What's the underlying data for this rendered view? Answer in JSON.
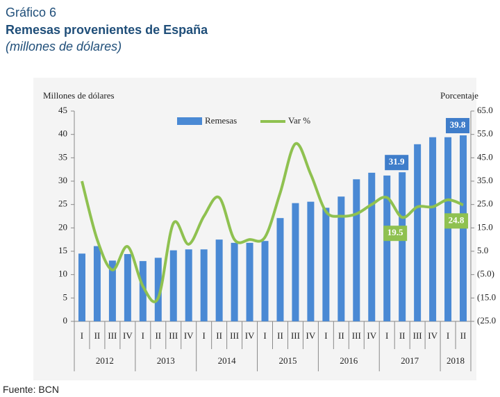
{
  "header": {
    "kicker": "Gráfico 6",
    "title": "Remesas provenientes de España",
    "subtitle": "(millones de dólares)"
  },
  "chart_data": {
    "type": "bar_line",
    "ylabel": "Millones de dólares",
    "y2label": "Porcentaje",
    "categories": [
      "I",
      "II",
      "III",
      "IV",
      "I",
      "II",
      "III",
      "IV",
      "I",
      "II",
      "III",
      "IV",
      "I",
      "II",
      "III",
      "IV",
      "I",
      "II",
      "III",
      "IV",
      "I",
      "II",
      "III",
      "IV",
      "I",
      "II"
    ],
    "groups": [
      {
        "label": "2012",
        "size": 4
      },
      {
        "label": "2013",
        "size": 4
      },
      {
        "label": "2014",
        "size": 4
      },
      {
        "label": "2015",
        "size": 4
      },
      {
        "label": "2016",
        "size": 4
      },
      {
        "label": "2017",
        "size": 4
      },
      {
        "label": "2018",
        "size": 2
      }
    ],
    "series": [
      {
        "name": "Remesas",
        "type": "bar",
        "color": "#4a89d4",
        "values": [
          14.5,
          16.1,
          13.0,
          14.4,
          12.9,
          13.6,
          15.2,
          15.4,
          15.4,
          17.5,
          16.8,
          16.8,
          17.2,
          22.1,
          25.3,
          25.6,
          24.3,
          26.7,
          30.4,
          31.8,
          31.2,
          31.9,
          37.9,
          39.4,
          39.4,
          39.8
        ],
        "value_labels": [
          null,
          null,
          null,
          null,
          null,
          null,
          null,
          null,
          null,
          null,
          null,
          null,
          null,
          null,
          null,
          null,
          null,
          null,
          null,
          null,
          null,
          "31.9",
          null,
          null,
          null,
          "39.8"
        ]
      },
      {
        "name": "Var %",
        "type": "line",
        "axis": "y2",
        "color": "#8fc150",
        "values": [
          35,
          10,
          -3,
          7,
          -10,
          -15,
          17,
          8,
          20,
          28,
          10,
          10,
          11,
          30,
          51,
          38,
          22,
          20,
          21,
          25,
          28,
          19.5,
          24,
          24,
          27,
          24.8
        ],
        "value_labels": [
          null,
          null,
          null,
          null,
          null,
          null,
          null,
          null,
          null,
          null,
          null,
          null,
          null,
          null,
          null,
          null,
          null,
          null,
          null,
          null,
          null,
          "19.5",
          null,
          null,
          null,
          "24.8"
        ]
      }
    ],
    "ylim": [
      0,
      45
    ],
    "yticks": [
      0,
      5,
      10,
      15,
      20,
      25,
      30,
      35,
      40,
      45
    ],
    "y2lim": [
      -25,
      65
    ],
    "y2ticks": [
      {
        "value": 65,
        "label": "65.0"
      },
      {
        "value": 55,
        "label": "55.0"
      },
      {
        "value": 45,
        "label": "45.0"
      },
      {
        "value": 35,
        "label": "35.0"
      },
      {
        "value": 25,
        "label": "25.0"
      },
      {
        "value": 15,
        "label": "15.0"
      },
      {
        "value": 5,
        "label": "5.0"
      },
      {
        "value": -5,
        "label": "(5.0)"
      },
      {
        "value": -15,
        "label": "(15.0"
      },
      {
        "value": -25,
        "label": "(25.0"
      }
    ]
  },
  "footer": {
    "source": "Fuente: BCN"
  }
}
